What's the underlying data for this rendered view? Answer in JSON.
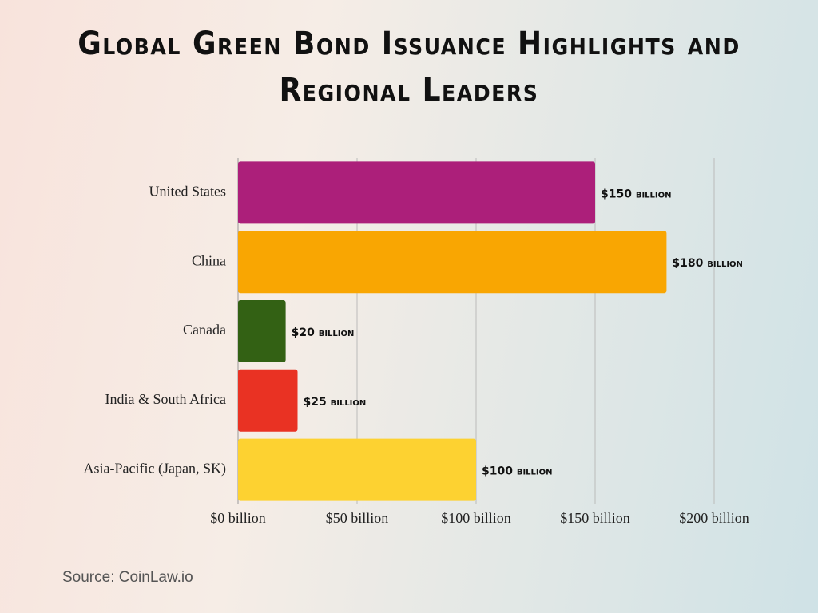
{
  "chart_data": {
    "type": "bar",
    "orientation": "horizontal",
    "title": "Global Green Bond Issuance Highlights and Regional Leaders",
    "categories": [
      "United States",
      "China",
      "Canada",
      "India & South Africa",
      "Asia-Pacific (Japan, SK)"
    ],
    "values": [
      150,
      180,
      20,
      25,
      100
    ],
    "value_labels": [
      "$150 billion",
      "$180 billion",
      "$20 billion",
      "$25 billion",
      "$100 billion"
    ],
    "colors": [
      "#ac1f7a",
      "#f9a602",
      "#336114",
      "#e93223",
      "#fdd231"
    ],
    "xlim": [
      0,
      200
    ],
    "xticks": [
      {
        "value": 0,
        "label": "$0 billion"
      },
      {
        "value": 50,
        "label": "$50 billion"
      },
      {
        "value": 100,
        "label": "$100 billion"
      },
      {
        "value": 150,
        "label": "$150 billion"
      },
      {
        "value": 200,
        "label": "$200 billion"
      }
    ],
    "grid": true,
    "source": "Source: CoinLaw.io"
  }
}
